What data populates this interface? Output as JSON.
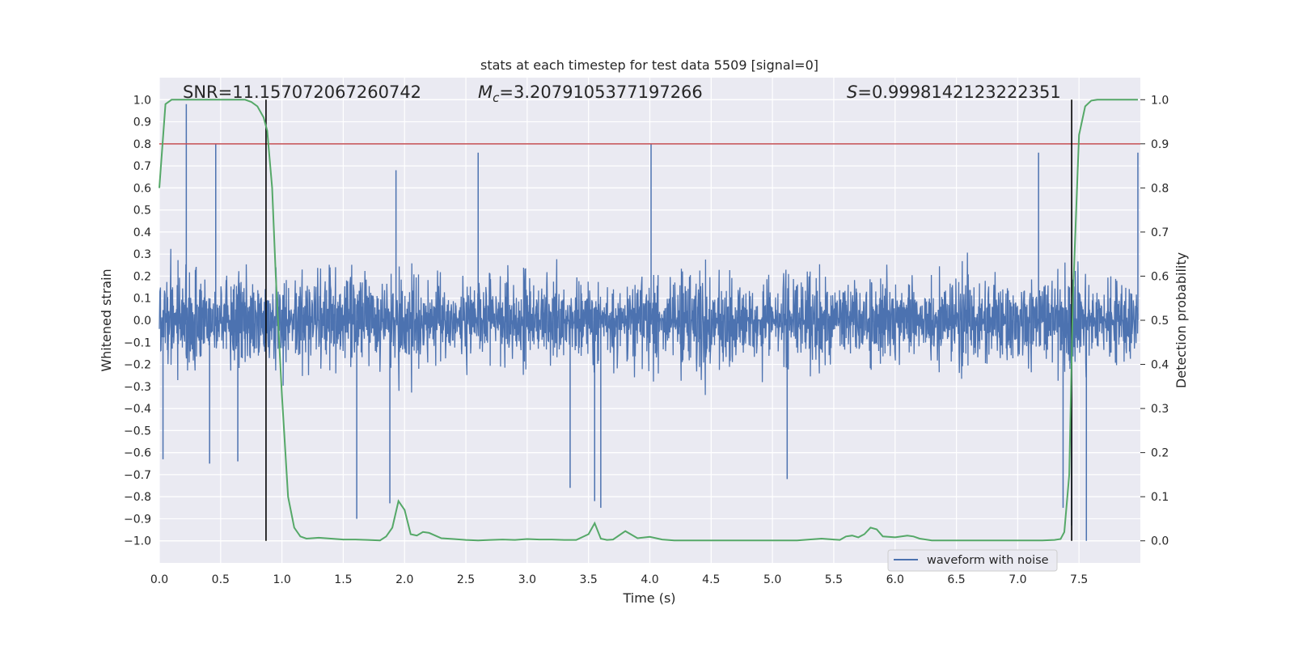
{
  "chart_data": {
    "type": "line",
    "title": "stats at each timestep for test data 5509 [signal=0]",
    "xlabel": "Time (s)",
    "ylabel": "Whitened strain",
    "y2label": "Detection probability",
    "xlim": [
      0.0,
      8.0
    ],
    "ylim": [
      -1.1,
      1.1
    ],
    "y2lim": [
      -0.05,
      1.05
    ],
    "xticks": [
      "0.0",
      "0.5",
      "1.0",
      "1.5",
      "2.0",
      "2.5",
      "3.0",
      "3.5",
      "4.0",
      "4.5",
      "5.0",
      "5.5",
      "6.0",
      "6.5",
      "7.0",
      "7.5"
    ],
    "yticks": [
      "1.0",
      "0.9",
      "0.8",
      "0.7",
      "0.6",
      "0.5",
      "0.4",
      "0.3",
      "0.2",
      "0.1",
      "0.0",
      "-0.1",
      "-0.2",
      "-0.3",
      "-0.4",
      "-0.5",
      "-0.6",
      "-0.7",
      "-0.8",
      "-0.9",
      "-1.0"
    ],
    "y2ticks": [
      "1.0",
      "0.9",
      "0.8",
      "0.7",
      "0.6",
      "0.5",
      "0.4",
      "0.3",
      "0.2",
      "0.1",
      "0.0"
    ],
    "grid": true,
    "legend_placement": "lower-right",
    "annotations": {
      "snr": "SNR=11.157072067260742",
      "mc_symbol": "M",
      "mc_sub": "c",
      "mc_value": "=3.2079105377197266",
      "s_symbol": "S",
      "s_value": "=0.9998142123222351"
    },
    "threshold": 0.9,
    "vertical_lines": [
      0.87,
      7.44
    ],
    "series": [
      {
        "name": "waveform with noise",
        "color": "#4c72b0",
        "kind": "strain",
        "peaks": [
          [
            0.03,
            -0.63
          ],
          [
            0.22,
            0.98
          ],
          [
            0.41,
            -0.65
          ],
          [
            0.46,
            0.8
          ],
          [
            0.64,
            -0.64
          ],
          [
            1.61,
            -0.9
          ],
          [
            1.88,
            -0.83
          ],
          [
            1.93,
            0.68
          ],
          [
            2.6,
            0.76
          ],
          [
            3.35,
            -0.76
          ],
          [
            3.55,
            -0.82
          ],
          [
            3.6,
            -0.85
          ],
          [
            4.01,
            0.8
          ],
          [
            5.12,
            -0.72
          ],
          [
            7.17,
            0.76
          ],
          [
            7.37,
            -0.85
          ],
          [
            7.44,
            -0.93
          ],
          [
            7.56,
            -1.0
          ],
          [
            7.98,
            0.76
          ]
        ]
      },
      {
        "name": "",
        "color": "#55a868",
        "kind": "probability",
        "x": [
          0.0,
          0.05,
          0.1,
          0.2,
          0.3,
          0.4,
          0.5,
          0.6,
          0.7,
          0.75,
          0.8,
          0.85,
          0.88,
          0.92,
          0.95,
          1.0,
          1.05,
          1.1,
          1.15,
          1.2,
          1.3,
          1.4,
          1.5,
          1.6,
          1.7,
          1.8,
          1.85,
          1.9,
          1.95,
          2.0,
          2.05,
          2.1,
          2.15,
          2.2,
          2.3,
          2.4,
          2.5,
          2.6,
          2.7,
          2.8,
          2.9,
          3.0,
          3.1,
          3.2,
          3.3,
          3.4,
          3.5,
          3.55,
          3.6,
          3.65,
          3.7,
          3.8,
          3.9,
          4.0,
          4.1,
          4.2,
          4.5,
          5.0,
          5.2,
          5.3,
          5.4,
          5.5,
          5.55,
          5.6,
          5.65,
          5.7,
          5.75,
          5.8,
          5.85,
          5.9,
          6.0,
          6.1,
          6.15,
          6.2,
          6.3,
          6.5,
          7.0,
          7.2,
          7.3,
          7.35,
          7.38,
          7.42,
          7.45,
          7.5,
          7.55,
          7.6,
          7.65,
          7.7,
          7.8,
          7.9,
          7.98
        ],
        "y": [
          0.8,
          0.99,
          1.0,
          1.0,
          1.0,
          1.0,
          1.0,
          1.0,
          1.0,
          0.995,
          0.985,
          0.96,
          0.93,
          0.8,
          0.6,
          0.33,
          0.1,
          0.03,
          0.01,
          0.005,
          0.007,
          0.005,
          0.003,
          0.003,
          0.002,
          0.001,
          0.01,
          0.03,
          0.09,
          0.07,
          0.015,
          0.012,
          0.02,
          0.018,
          0.006,
          0.004,
          0.002,
          0.001,
          0.002,
          0.003,
          0.002,
          0.004,
          0.003,
          0.003,
          0.002,
          0.002,
          0.015,
          0.04,
          0.005,
          0.002,
          0.003,
          0.022,
          0.006,
          0.009,
          0.003,
          0.001,
          0.001,
          0.001,
          0.001,
          0.003,
          0.005,
          0.003,
          0.002,
          0.01,
          0.012,
          0.008,
          0.015,
          0.03,
          0.026,
          0.01,
          0.008,
          0.012,
          0.01,
          0.005,
          0.001,
          0.001,
          0.001,
          0.001,
          0.002,
          0.004,
          0.02,
          0.15,
          0.55,
          0.92,
          0.985,
          0.998,
          1.0,
          1.0,
          1.0,
          1.0,
          1.0
        ]
      }
    ]
  }
}
